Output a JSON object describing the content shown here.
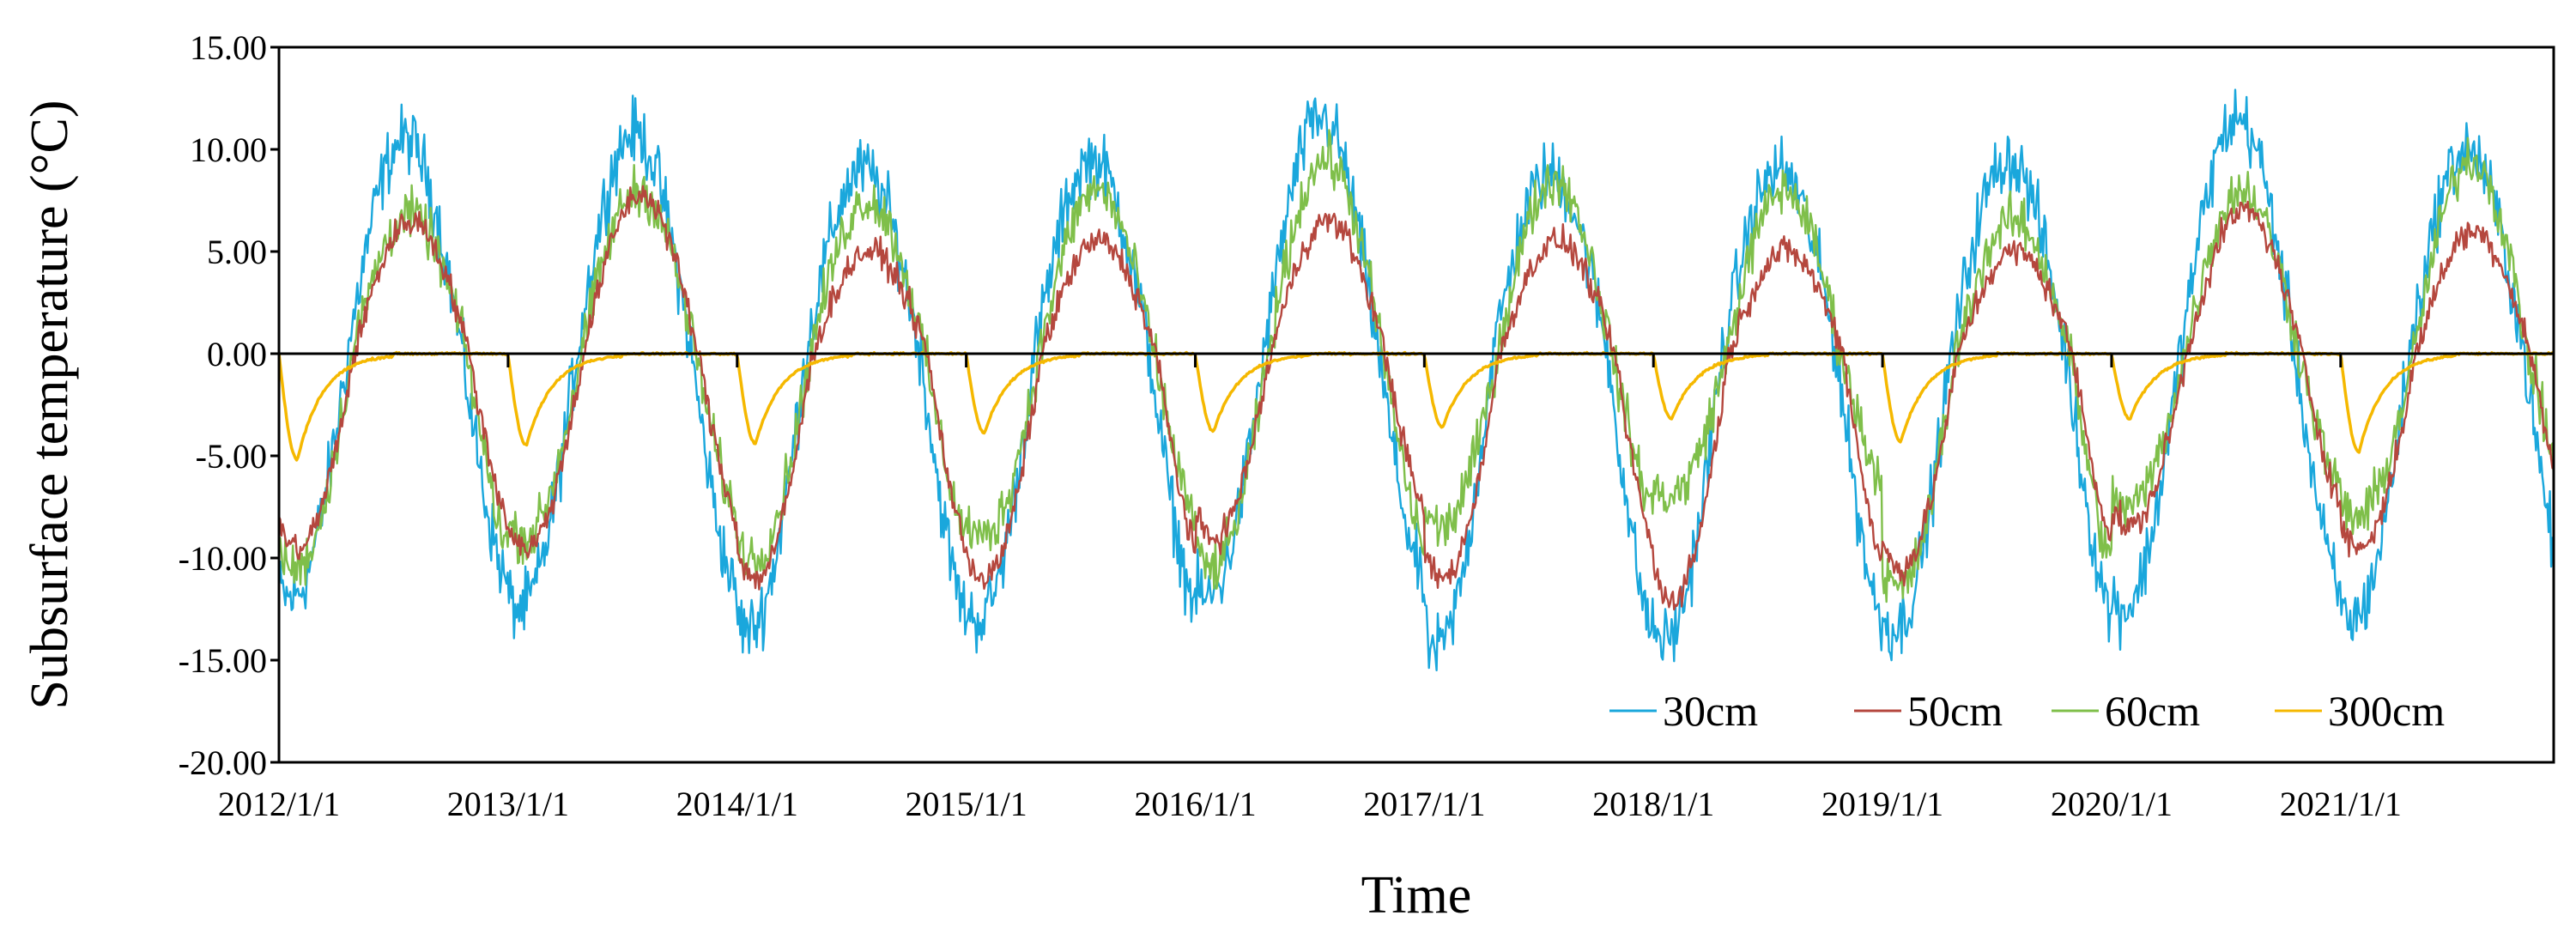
{
  "chart_data": {
    "type": "line",
    "title": "",
    "xlabel": "Time",
    "ylabel": "Subsurface temperature (°C)",
    "ylim": [
      -20,
      15
    ],
    "yticks": [
      15,
      10,
      5,
      0,
      -5,
      -10,
      -15,
      -20
    ],
    "ytick_labels": [
      "15.00",
      "10.00",
      "5.00",
      "0.00",
      "-5.00",
      "-10.00",
      "-15.00",
      "-20.00"
    ],
    "xlim": [
      2012.0,
      2021.93
    ],
    "xticks": [
      2012,
      2013,
      2014,
      2015,
      2016,
      2017,
      2018,
      2019,
      2020,
      2021
    ],
    "xtick_labels": [
      "2012/1/1",
      "2013/1/1",
      "2014/1/1",
      "2015/1/1",
      "2016/1/1",
      "2017/1/1",
      "2018/1/1",
      "2019/1/1",
      "2020/1/1",
      "2021/1/1"
    ],
    "zero_line": true,
    "legend_position": "bottom-right",
    "series": [
      {
        "name": "30cm",
        "color": "#1aa7dc",
        "summer_peaks": [
          10.5,
          10.8,
          9.0,
          9.5,
          11.5,
          8.8,
          9.0,
          9.5,
          11.5,
          10.0
        ],
        "winter_troughs": [
          -12.0,
          -12.5,
          -13.5,
          -13.0,
          -12.0,
          -14.5,
          -14.0,
          -13.5,
          -12.5,
          -13.0
        ],
        "noise_amplitude": 1.6
      },
      {
        "name": "50cm",
        "color": "#b5473e",
        "summer_peaks": [
          6.5,
          7.8,
          5.0,
          5.5,
          6.5,
          5.5,
          5.0,
          5.0,
          7.0,
          6.0
        ],
        "winter_troughs": [
          -9.5,
          -9.5,
          -11.0,
          -11.0,
          -9.0,
          -11.0,
          -12.0,
          -10.5,
          -8.5,
          -9.5
        ],
        "noise_amplitude": 0.7
      },
      {
        "name": "60cm",
        "color": "#7fbf4a",
        "summer_peaks": [
          6.8,
          8.0,
          7.5,
          8.0,
          9.5,
          8.5,
          8.0,
          6.5,
          8.0,
          9.5
        ],
        "winter_troughs": [
          -10.5,
          -9.0,
          -10.0,
          -9.0,
          -10.5,
          -8.5,
          -7.0,
          -11.5,
          -7.5,
          -8.0
        ],
        "noise_amplitude": 1.2
      },
      {
        "name": "300cm",
        "color": "#f5b800",
        "winter_minima": [
          -5.2,
          -4.5,
          -4.4,
          -3.9,
          -3.8,
          -3.6,
          -3.2,
          -4.3,
          -3.2,
          -4.8
        ],
        "summer_value": 0.0
      }
    ]
  }
}
